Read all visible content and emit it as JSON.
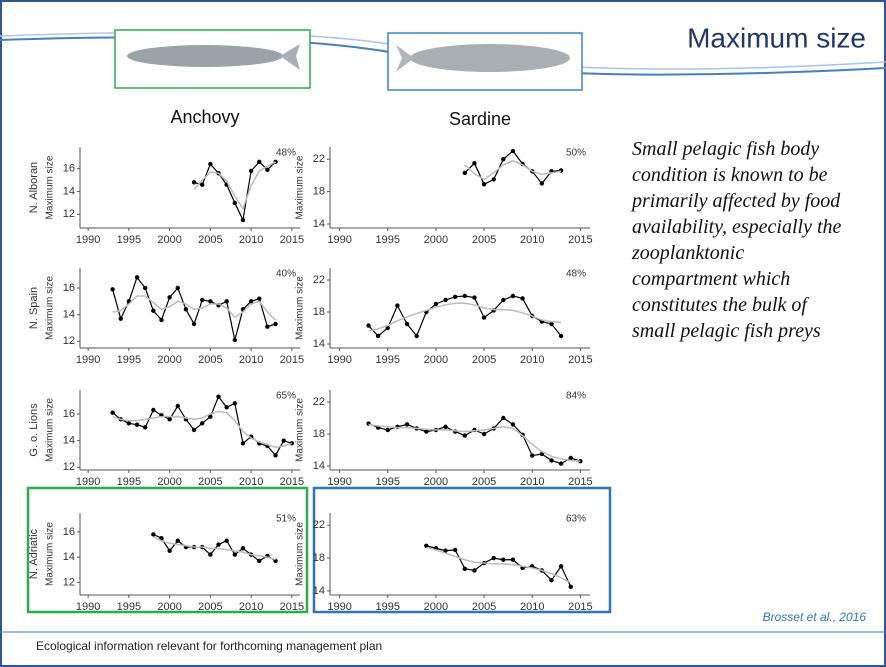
{
  "slide": {
    "title": "Maximum size",
    "column_headers": [
      "Anchovy",
      "Sardine"
    ],
    "text": "Small pelagic fish body condition is known to be primarily affected by food availability, especially the zooplanktonic compartment which constitutes the bulk of small pelagic fish preys",
    "citation": "Brosset et al., 2016",
    "footer": "Ecological information relevant for forthcoming management plan"
  },
  "chart_data": [
    {
      "type": "line",
      "title": "N. Alboran",
      "ylabel": "Maximum size",
      "annotation": "48%",
      "x": [
        2003,
        2004,
        2005,
        2006,
        2007,
        2008,
        2009,
        2010,
        2011,
        2012,
        2013
      ],
      "series": [
        {
          "color": "#000000",
          "markers": true,
          "values": [
            14.8,
            14.6,
            16.4,
            15.6,
            14.6,
            13.0,
            11.5,
            15.8,
            16.6,
            15.9,
            16.6
          ]
        },
        {
          "color": "#bbbbbb",
          "markers": false,
          "values": [
            14.2,
            15.0,
            15.7,
            15.6,
            14.9,
            13.6,
            12.5,
            14.5,
            15.8,
            16.2,
            16.6
          ]
        }
      ],
      "xlim": [
        1989,
        2016
      ],
      "ylim": [
        10.8,
        17.9
      ],
      "xticks": [
        1990,
        1995,
        2000,
        2005,
        2010,
        2015
      ],
      "yticks": [
        12,
        14,
        16
      ]
    },
    {
      "type": "line",
      "ylabel": "Maximum size",
      "annotation": "50%",
      "x": [
        2003,
        2004,
        2005,
        2006,
        2007,
        2008,
        2009,
        2010,
        2011,
        2012,
        2013
      ],
      "series": [
        {
          "color": "#000000",
          "markers": true,
          "values": [
            20.3,
            21.5,
            18.9,
            19.5,
            22.0,
            23.0,
            21.4,
            20.5,
            19.0,
            20.5,
            20.6
          ]
        },
        {
          "color": "#bbbbbb",
          "markers": false,
          "values": [
            21.3,
            20.2,
            19.5,
            20.3,
            21.3,
            21.8,
            21.3,
            20.5,
            20.1,
            20.3,
            20.5
          ]
        }
      ],
      "xlim": [
        1989,
        2016
      ],
      "ylim": [
        13.5,
        23.5
      ],
      "xticks": [
        1990,
        1995,
        2000,
        2005,
        2010,
        2015
      ],
      "yticks": [
        14,
        18,
        22
      ]
    },
    {
      "type": "line",
      "title": "N. Spain",
      "ylabel": "Maximum size",
      "annotation": "40%",
      "x": [
        1993,
        1994,
        1995,
        1996,
        1997,
        1998,
        1999,
        2000,
        2001,
        2002,
        2003,
        2004,
        2005,
        2006,
        2007,
        2008,
        2009,
        2010,
        2011,
        2012,
        2013
      ],
      "series": [
        {
          "color": "#000000",
          "markers": true,
          "values": [
            15.9,
            13.7,
            15.0,
            16.8,
            16.0,
            14.3,
            13.6,
            15.3,
            16.0,
            14.4,
            13.3,
            15.1,
            15.0,
            14.7,
            15.0,
            12.1,
            14.4,
            15.0,
            15.2,
            13.1,
            13.3
          ]
        },
        {
          "color": "#bbbbbb",
          "markers": false,
          "values": [
            14.2,
            14.3,
            14.8,
            15.4,
            15.4,
            14.9,
            14.4,
            14.6,
            15.0,
            14.8,
            14.4,
            14.5,
            14.8,
            14.8,
            14.5,
            13.8,
            14.2,
            14.8,
            15.0,
            14.2,
            13.6
          ]
        }
      ],
      "xlim": [
        1989,
        2016
      ],
      "ylim": [
        11.5,
        17.5
      ],
      "xticks": [
        1990,
        1995,
        2000,
        2005,
        2010,
        2015
      ],
      "yticks": [
        12,
        14,
        16
      ]
    },
    {
      "type": "line",
      "ylabel": "Maximum size",
      "annotation": "48%",
      "x": [
        1993,
        1994,
        1995,
        1996,
        1997,
        1998,
        1999,
        2000,
        2001,
        2002,
        2003,
        2004,
        2005,
        2006,
        2007,
        2008,
        2009,
        2010,
        2011,
        2012,
        2013
      ],
      "series": [
        {
          "color": "#000000",
          "markers": true,
          "values": [
            16.3,
            15.0,
            16.0,
            18.8,
            16.5,
            15.0,
            18.0,
            19.0,
            19.5,
            19.9,
            20.0,
            19.8,
            17.3,
            18.2,
            19.5,
            20.0,
            19.7,
            17.5,
            16.8,
            16.5,
            15.0
          ]
        },
        {
          "color": "#bbbbbb",
          "markers": false,
          "values": [
            15.6,
            15.9,
            16.3,
            16.9,
            17.4,
            17.8,
            18.2,
            18.6,
            18.9,
            19.1,
            19.1,
            18.9,
            18.5,
            18.3,
            18.3,
            18.2,
            17.9,
            17.5,
            17.0,
            16.8,
            16.7
          ]
        }
      ],
      "xlim": [
        1989,
        2016
      ],
      "ylim": [
        13.5,
        23.5
      ],
      "xticks": [
        1990,
        1995,
        2000,
        2005,
        2010,
        2015
      ],
      "yticks": [
        14,
        18,
        22
      ]
    },
    {
      "type": "line",
      "title": "G. o. Lions",
      "ylabel": "Maximum size",
      "annotation": "65%",
      "x": [
        1993,
        1994,
        1995,
        1996,
        1997,
        1998,
        1999,
        2000,
        2001,
        2002,
        2003,
        2004,
        2005,
        2006,
        2007,
        2008,
        2009,
        2010,
        2011,
        2012,
        2013,
        2014,
        2015
      ],
      "series": [
        {
          "color": "#000000",
          "markers": true,
          "values": [
            16.1,
            15.6,
            15.3,
            15.2,
            15.0,
            16.3,
            15.9,
            15.6,
            16.6,
            15.6,
            14.8,
            15.3,
            15.8,
            17.3,
            16.5,
            16.8,
            13.8,
            14.3,
            13.8,
            13.6,
            12.9,
            14.0,
            13.8
          ]
        },
        {
          "color": "#bbbbbb",
          "markers": false,
          "values": [
            15.8,
            15.6,
            15.5,
            15.5,
            15.6,
            15.7,
            15.8,
            15.8,
            15.8,
            15.7,
            15.6,
            15.7,
            16.0,
            16.2,
            16.1,
            15.5,
            14.7,
            14.2,
            13.9,
            13.7,
            13.5,
            13.6,
            13.8
          ]
        }
      ],
      "xlim": [
        1989,
        2016
      ],
      "ylim": [
        11.8,
        17.8
      ],
      "xticks": [
        1990,
        1995,
        2000,
        2005,
        2010,
        2015
      ],
      "yticks": [
        12,
        14,
        16
      ]
    },
    {
      "type": "line",
      "ylabel": "Maximum size",
      "annotation": "84%",
      "x": [
        1993,
        1994,
        1995,
        1996,
        1997,
        1998,
        1999,
        2000,
        2001,
        2002,
        2003,
        2004,
        2005,
        2006,
        2007,
        2008,
        2009,
        2010,
        2011,
        2012,
        2013,
        2014,
        2015
      ],
      "series": [
        {
          "color": "#000000",
          "markers": true,
          "values": [
            19.3,
            18.8,
            18.5,
            18.9,
            19.2,
            18.7,
            18.3,
            18.5,
            18.9,
            18.3,
            17.8,
            18.5,
            18.0,
            18.7,
            20.0,
            19.2,
            17.9,
            15.3,
            15.5,
            14.7,
            14.3,
            15.0,
            14.6
          ]
        },
        {
          "color": "#bbbbbb",
          "markers": false,
          "values": [
            19.2,
            19.0,
            18.9,
            18.8,
            18.8,
            18.7,
            18.6,
            18.5,
            18.5,
            18.4,
            18.3,
            18.4,
            18.5,
            18.7,
            18.9,
            18.7,
            17.8,
            16.7,
            15.8,
            15.2,
            14.9,
            14.7,
            14.6
          ]
        }
      ],
      "xlim": [
        1989,
        2016
      ],
      "ylim": [
        13.5,
        23.5
      ],
      "xticks": [
        1990,
        1995,
        2000,
        2005,
        2010,
        2015
      ],
      "yticks": [
        14,
        18,
        22
      ]
    },
    {
      "type": "line",
      "title": "N. Adriatic",
      "ylabel": "Maximum size",
      "annotation": "51%",
      "x": [
        1998,
        1999,
        2000,
        2001,
        2002,
        2003,
        2004,
        2005,
        2006,
        2007,
        2008,
        2009,
        2010,
        2011,
        2012,
        2013
      ],
      "series": [
        {
          "color": "#000000",
          "markers": true,
          "values": [
            15.8,
            15.5,
            14.5,
            15.3,
            14.8,
            14.8,
            14.8,
            14.2,
            15.0,
            15.3,
            14.2,
            14.7,
            14.2,
            13.7,
            14.1,
            13.7
          ]
        },
        {
          "color": "#bbbbbb",
          "markers": false,
          "values": [
            15.6,
            15.3,
            15.1,
            15.0,
            14.9,
            14.8,
            14.8,
            14.7,
            14.7,
            14.6,
            14.5,
            14.4,
            14.2,
            14.1,
            14.0,
            13.8
          ]
        }
      ],
      "xlim": [
        1989,
        2016
      ],
      "ylim": [
        11,
        17.5
      ],
      "xticks": [
        1990,
        1995,
        2000,
        2005,
        2010,
        2015
      ],
      "yticks": [
        12,
        14,
        16
      ]
    },
    {
      "type": "line",
      "ylabel": "Maximum size",
      "annotation": "63%",
      "x": [
        1999,
        2000,
        2001,
        2002,
        2003,
        2004,
        2005,
        2006,
        2007,
        2008,
        2009,
        2010,
        2011,
        2012,
        2013,
        2014
      ],
      "series": [
        {
          "color": "#000000",
          "markers": true,
          "values": [
            19.5,
            19.2,
            18.9,
            19.0,
            16.7,
            16.5,
            17.4,
            18.0,
            17.8,
            17.8,
            16.8,
            17.0,
            16.5,
            15.3,
            17.0,
            14.5
          ]
        },
        {
          "color": "#bbbbbb",
          "markers": false,
          "values": [
            19.3,
            19.0,
            18.6,
            18.2,
            17.8,
            17.5,
            17.4,
            17.3,
            17.3,
            17.2,
            17.0,
            16.8,
            16.5,
            16.1,
            15.6,
            15.0
          ]
        }
      ],
      "xlim": [
        1989,
        2016
      ],
      "ylim": [
        13.5,
        23.5
      ],
      "xticks": [
        1990,
        1995,
        2000,
        2005,
        2010,
        2015
      ],
      "yticks": [
        14,
        18,
        22
      ]
    }
  ]
}
